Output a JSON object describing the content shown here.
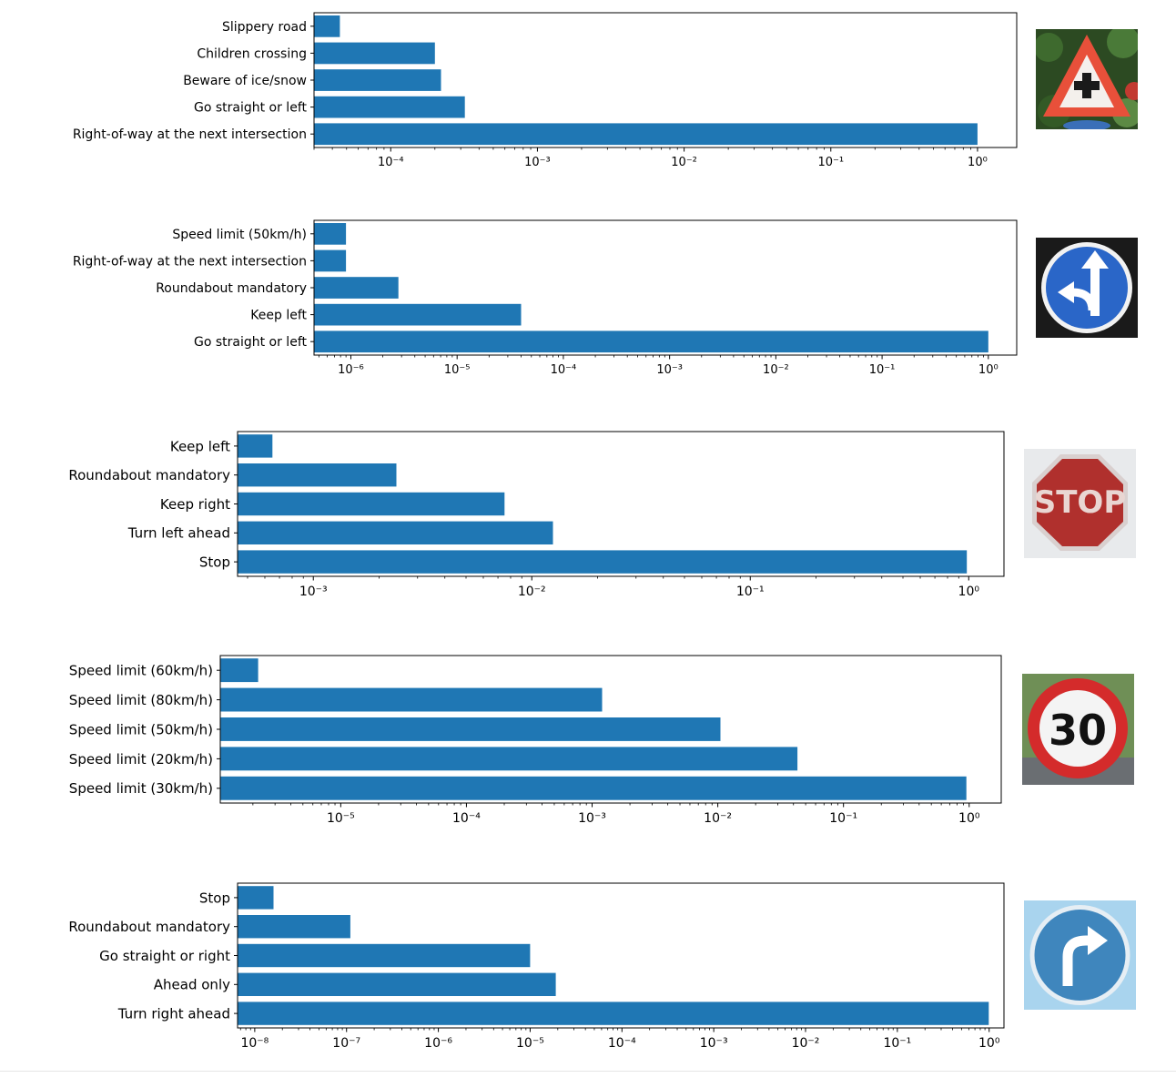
{
  "chart_data": [
    {
      "type": "bar",
      "orientation": "horizontal",
      "xscale": "log",
      "xlim": [
        3e-05,
        1.85
      ],
      "xticks_exponents": [
        -4,
        -3,
        -2,
        -1,
        0
      ],
      "categories": [
        "Slippery road",
        "Children crossing",
        "Beware of ice/snow",
        "Go straight or left",
        "Right-of-way at the next intersection"
      ],
      "values": [
        4.5e-05,
        0.0002,
        0.00022,
        0.00032,
        1.0
      ],
      "title": "",
      "xlabel": "",
      "ylabel": "",
      "grid": false,
      "bar_color": "#1f77b4",
      "image": "right-of-way-sign"
    },
    {
      "type": "bar",
      "orientation": "horizontal",
      "xscale": "log",
      "xlim": [
        4.5e-07,
        1.85
      ],
      "xticks_exponents": [
        -6,
        -5,
        -4,
        -3,
        -2,
        -1,
        0
      ],
      "categories": [
        "Speed limit (50km/h)",
        "Right-of-way at the next intersection",
        "Roundabout mandatory",
        "Keep left",
        "Go straight or left"
      ],
      "values": [
        9e-07,
        9e-07,
        2.8e-06,
        4e-05,
        1.0
      ],
      "title": "",
      "xlabel": "",
      "ylabel": "",
      "grid": false,
      "bar_color": "#1f77b4",
      "image": "go-straight-or-left-sign"
    },
    {
      "type": "bar",
      "orientation": "horizontal",
      "xscale": "log",
      "xlim": [
        0.00045,
        1.45
      ],
      "xticks_exponents": [
        -3,
        -2,
        -1,
        0
      ],
      "categories": [
        "Keep left",
        "Roundabout mandatory",
        "Keep right",
        "Turn left ahead",
        "Stop"
      ],
      "values": [
        0.00065,
        0.0024,
        0.0075,
        0.0125,
        0.98
      ],
      "title": "",
      "xlabel": "",
      "ylabel": "",
      "grid": false,
      "bar_color": "#1f77b4",
      "image": "stop-sign"
    },
    {
      "type": "bar",
      "orientation": "horizontal",
      "xscale": "log",
      "xlim": [
        1.1e-06,
        1.8
      ],
      "xticks_exponents": [
        -5,
        -4,
        -3,
        -2,
        -1,
        0
      ],
      "categories": [
        "Speed limit (60km/h)",
        "Speed limit (80km/h)",
        "Speed limit (50km/h)",
        "Speed limit (20km/h)",
        "Speed limit (30km/h)"
      ],
      "values": [
        2.2e-06,
        0.0012,
        0.0105,
        0.043,
        0.95
      ],
      "title": "",
      "xlabel": "",
      "ylabel": "",
      "grid": false,
      "bar_color": "#1f77b4",
      "image": "speed-limit-30-sign"
    },
    {
      "type": "bar",
      "orientation": "horizontal",
      "xscale": "log",
      "xlim": [
        6.5e-09,
        1.45
      ],
      "xticks_exponents": [
        -8,
        -7,
        -6,
        -5,
        -4,
        -3,
        -2,
        -1,
        0
      ],
      "categories": [
        "Stop",
        "Roundabout mandatory",
        "Go straight or right",
        "Ahead only",
        "Turn right ahead"
      ],
      "values": [
        1.6e-08,
        1.1e-07,
        1e-05,
        1.9e-05,
        0.99
      ],
      "title": "",
      "xlabel": "",
      "ylabel": "",
      "grid": false,
      "bar_color": "#1f77b4",
      "image": "turn-right-ahead-sign"
    }
  ]
}
